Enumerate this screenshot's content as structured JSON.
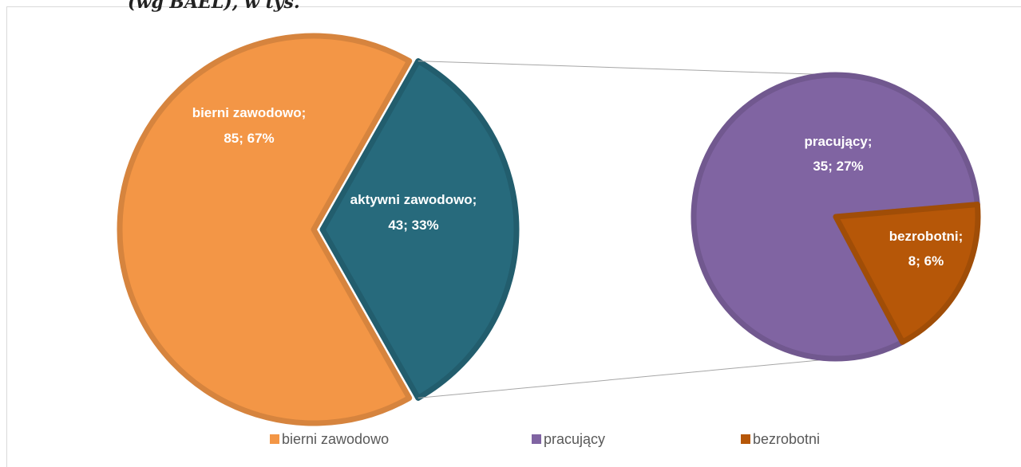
{
  "chart_data": {
    "type": "pie-of-pie",
    "title": "(wg BAEL), w tys.",
    "categories": [
      "bierni zawodowo",
      "aktywni zawodowo"
    ],
    "values": [
      85,
      43
    ],
    "colors": [
      "#f39646",
      "#276a7c"
    ],
    "name_labels": [
      "bierni zawodowo;",
      "aktywni zawodowo;"
    ],
    "value_labels": [
      "85; 67%",
      "43; 33%"
    ],
    "split_index": 1,
    "secondary": {
      "categories": [
        "pracujący",
        "bezrobotni"
      ],
      "values": [
        35,
        8
      ],
      "colors": [
        "#8064a2",
        "#b65708"
      ],
      "name_labels": [
        "pracujący;",
        "bezrobotni;"
      ],
      "value_labels": [
        "35; 27%",
        "8; 6%"
      ]
    }
  }
}
